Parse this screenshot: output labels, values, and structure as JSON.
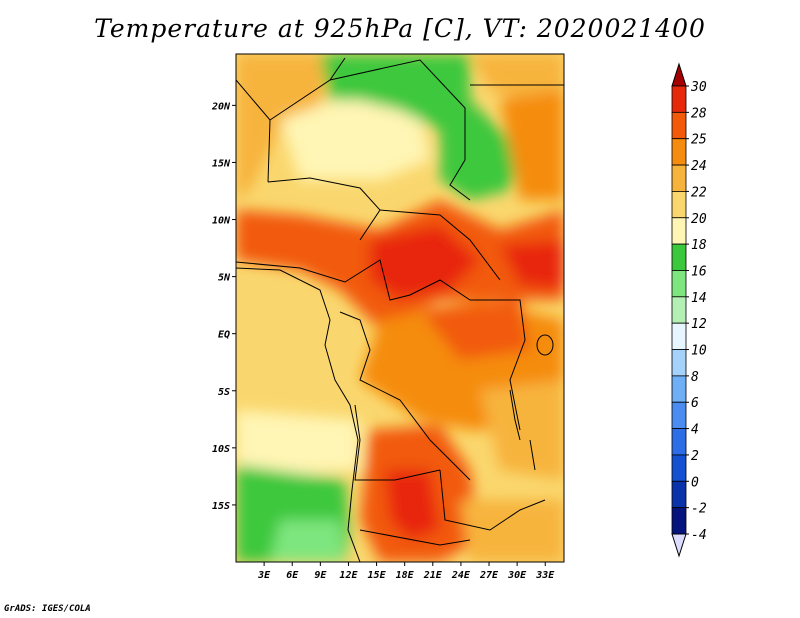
{
  "title": "Temperature at 925hPa [C], VT: 2020021400",
  "credit": "GrADS: IGES/COLA",
  "map": {
    "lat_ticks": [
      "20N",
      "15N",
      "10N",
      "5N",
      "EQ",
      "5S",
      "10S",
      "15S"
    ],
    "lon_ticks": [
      "3E",
      "6E",
      "9E",
      "12E",
      "15E",
      "18E",
      "21E",
      "24E",
      "27E",
      "30E",
      "33E"
    ],
    "lon_range": [
      0,
      35
    ],
    "lat_range": [
      -20,
      24.5
    ]
  },
  "colorbar": {
    "labels": [
      "30",
      "28",
      "25",
      "24",
      "22",
      "20",
      "18",
      "16",
      "14",
      "12",
      "10",
      "8",
      "6",
      "4",
      "2",
      "0",
      "-2",
      "-4"
    ],
    "colors": [
      "#a50000",
      "#e8280a",
      "#f25a0a",
      "#f58c0f",
      "#f7b43c",
      "#fad76e",
      "#fff5b4",
      "#3cc83c",
      "#7ee67e",
      "#b4f0b4",
      "#e6f5ff",
      "#a5d2fa",
      "#6eaff5",
      "#4b8cf0",
      "#2d6ee6",
      "#1450d2",
      "#0a32aa",
      "#05147d",
      "#dcdcff"
    ]
  }
}
